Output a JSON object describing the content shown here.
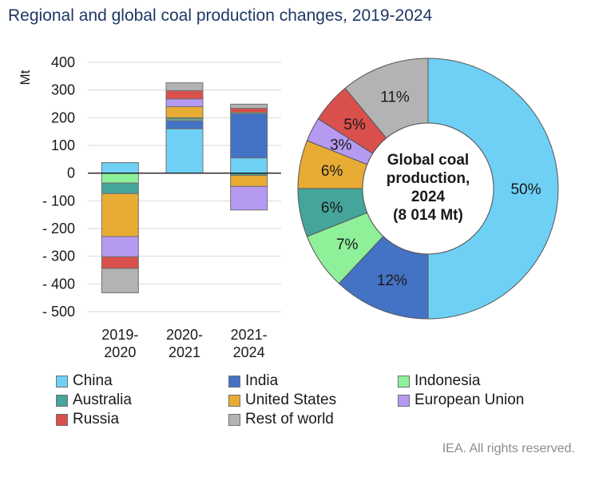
{
  "title": "Regional and global coal production changes, 2019-2024",
  "footer": "IEA. All rights reserved.",
  "colors": {
    "China": "#6fd0f6",
    "India": "#4472c4",
    "Indonesia": "#8ff09a",
    "Australia": "#45a59a",
    "United States": "#e8ac35",
    "European Union": "#b69af2",
    "Russia": "#d9504c",
    "Rest of world": "#b3b3b3"
  },
  "legend": [
    "China",
    "India",
    "Indonesia",
    "Australia",
    "United States",
    "European Union",
    "Russia",
    "Rest of world"
  ],
  "chart_data": [
    {
      "type": "bar",
      "stacked": true,
      "ylabel": "Mt",
      "ylim": [
        -500,
        400
      ],
      "yticks": [
        400,
        300,
        200,
        100,
        0,
        -100,
        -200,
        -300,
        -400,
        -500
      ],
      "ytick_labels": [
        "400",
        "300",
        "200",
        "100",
        "0",
        "- 100",
        "- 200",
        "- 300",
        "- 400",
        "- 500"
      ],
      "grid": true,
      "categories": [
        [
          "2019-",
          "2020"
        ],
        [
          "2020-",
          "2021"
        ],
        [
          "2021-",
          "2024"
        ]
      ],
      "series": [
        {
          "name": "China",
          "values": [
            38,
            160,
            55
          ]
        },
        {
          "name": "India",
          "values": [
            -1,
            30,
            160
          ]
        },
        {
          "name": "Indonesia",
          "values": [
            -35,
            5,
            4
          ]
        },
        {
          "name": "Australia",
          "values": [
            -38,
            5,
            -8
          ]
        },
        {
          "name": "United States",
          "values": [
            -155,
            40,
            -40
          ]
        },
        {
          "name": "European Union",
          "values": [
            -73,
            28,
            -85
          ]
        },
        {
          "name": "Russia",
          "values": [
            -42,
            30,
            15
          ]
        },
        {
          "name": "Rest of world",
          "values": [
            -88,
            28,
            15
          ]
        }
      ]
    },
    {
      "type": "pie",
      "donut": true,
      "center_label": [
        "Global coal",
        "production,",
        "2024",
        "(8 014 Mt)"
      ],
      "slices": [
        {
          "name": "China",
          "value": 50,
          "label": "50%"
        },
        {
          "name": "India",
          "value": 12,
          "label": "12%"
        },
        {
          "name": "Indonesia",
          "value": 7,
          "label": "7%"
        },
        {
          "name": "Australia",
          "value": 6,
          "label": "6%"
        },
        {
          "name": "United States",
          "value": 6,
          "label": "6%"
        },
        {
          "name": "European Union",
          "value": 3,
          "label": "3%"
        },
        {
          "name": "Russia",
          "value": 5,
          "label": "5%"
        },
        {
          "name": "Rest of world",
          "value": 11,
          "label": "11%"
        }
      ]
    }
  ]
}
